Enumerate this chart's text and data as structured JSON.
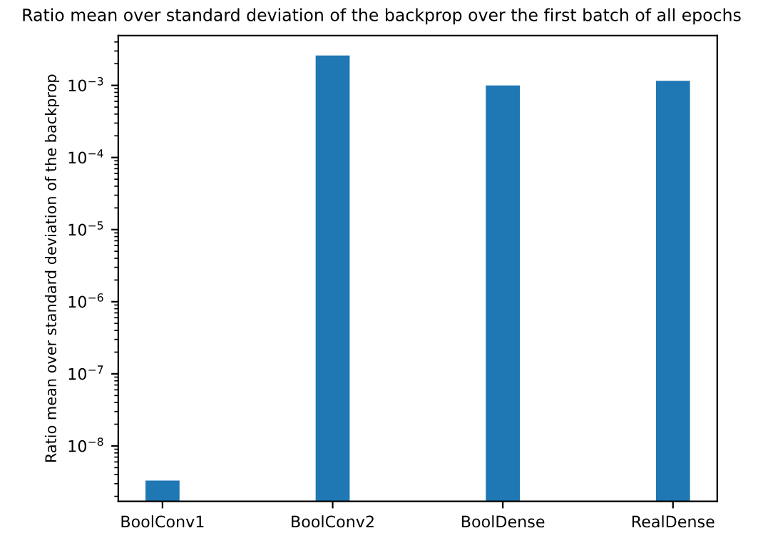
{
  "chart_data": {
    "type": "bar",
    "title": "Ratio mean over standard deviation of the backprop over the first batch of all epochs",
    "ylabel": "Ratio mean over standard deviation of the backprop",
    "categories": [
      "BoolConv1",
      "BoolConv2",
      "BoolDense",
      "RealDense"
    ],
    "values": [
      3.3e-09,
      0.0026,
      0.001,
      0.00116
    ],
    "color": "#1f77b4",
    "log": "y",
    "ylim": [
      1.7e-09,
      0.0049
    ],
    "yticks": [
      {
        "value": 1e-08,
        "label": "10$^{−8}$"
      },
      {
        "value": 1e-07,
        "label": "10$^{−7}$"
      },
      {
        "value": 1e-06,
        "label": "10$^{−6}$"
      },
      {
        "value": 1e-05,
        "label": "10$^{−5}$"
      },
      {
        "value": 0.0001,
        "label": "10$^{−4}$"
      },
      {
        "value": 0.001,
        "label": "10$^{−3}$"
      }
    ],
    "grid": false,
    "legend": false
  }
}
